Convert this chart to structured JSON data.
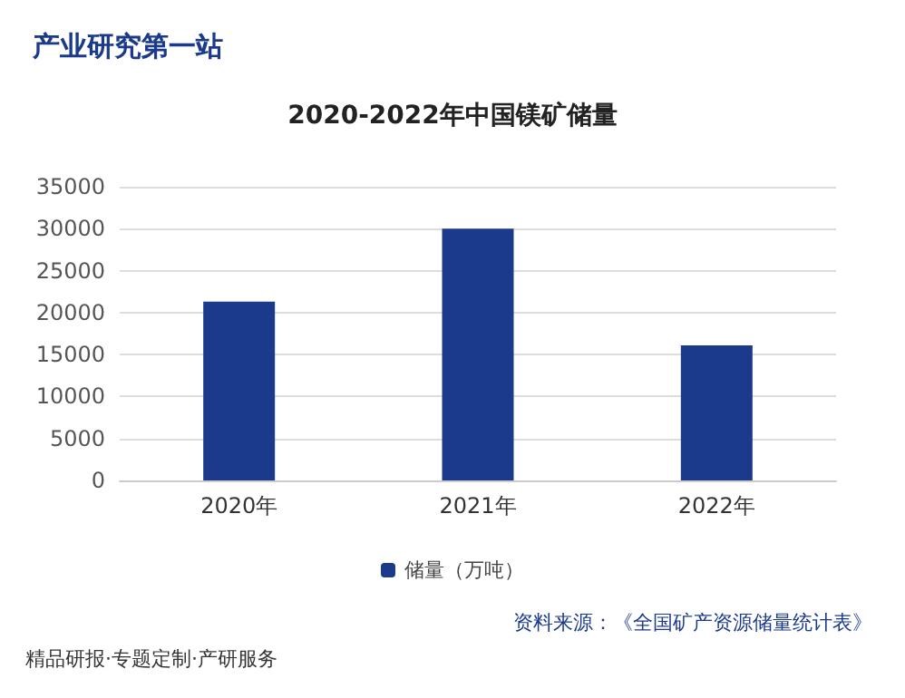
{
  "chart_data": {
    "type": "bar",
    "title": "2020-2022年中国镁矿储量",
    "categories": [
      "2020年",
      "2021年",
      "2022年"
    ],
    "series": [
      {
        "name": "储量（万吨）",
        "color": "#1b3a8c",
        "values": [
          21300,
          30000,
          16100
        ]
      }
    ],
    "ylim": [
      0,
      35000
    ],
    "yticks": [
      0,
      5000,
      10000,
      15000,
      20000,
      25000,
      30000,
      35000
    ],
    "grid": "y",
    "legend": "bottom",
    "annotations": [
      "产业研究第一站",
      "资料来源：《全国矿产资源储量统计表》",
      "精品研报·专题定制·产研服务"
    ]
  }
}
